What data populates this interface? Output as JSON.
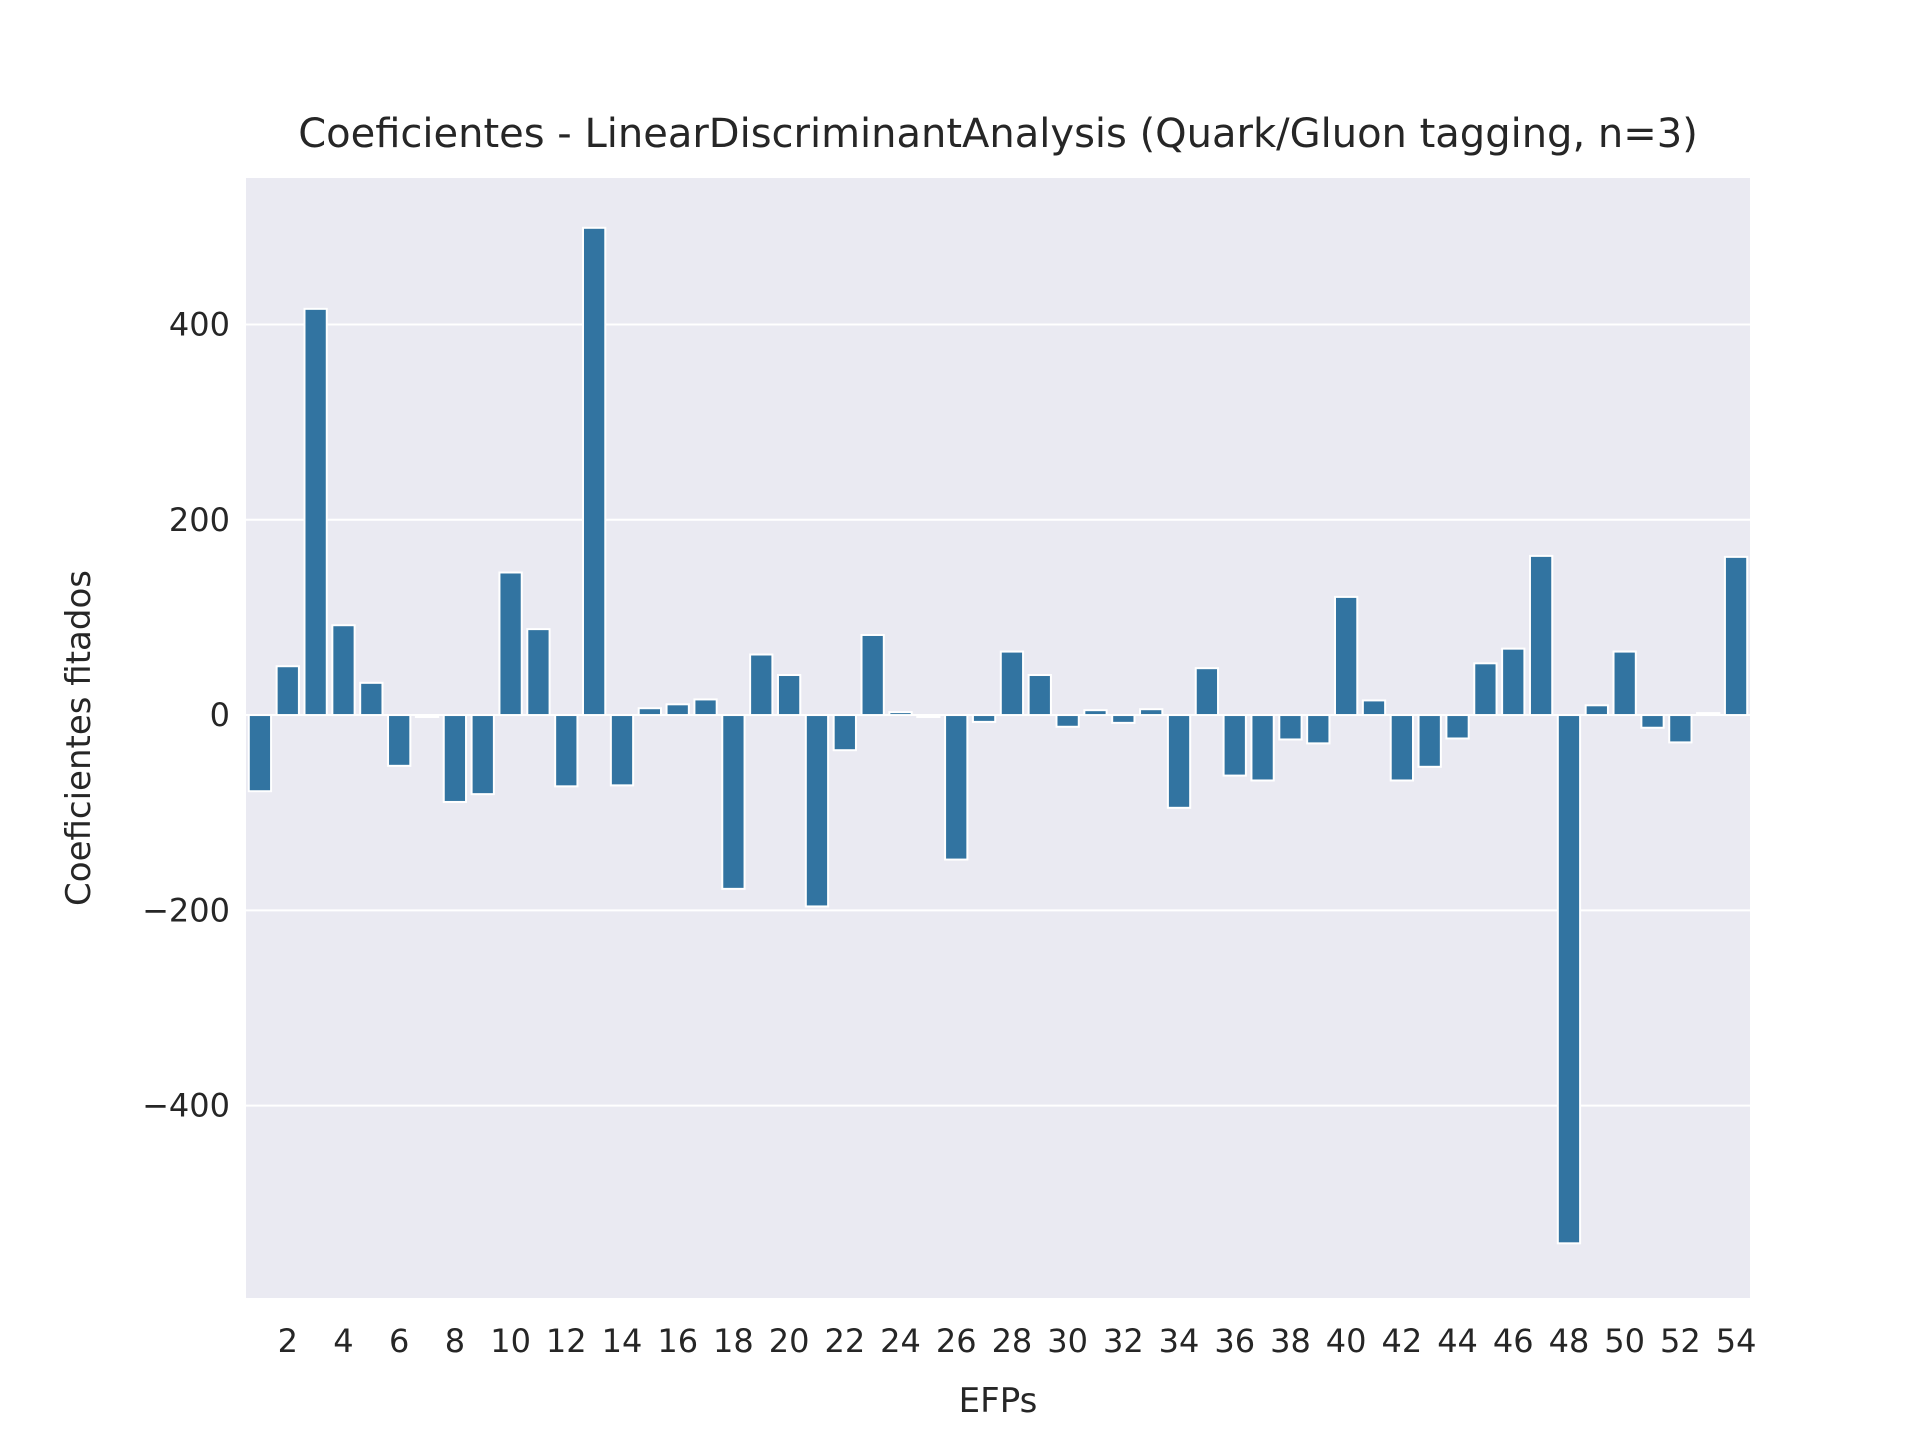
{
  "chart_data": {
    "type": "bar",
    "title": "Coeficientes - LinearDiscriminantAnalysis (Quark/Gluon tagging, n=3)",
    "xlabel": "EFPs",
    "ylabel": "Coeficientes fitados",
    "ylim": [
      -597,
      550
    ],
    "yticks": [
      -400,
      -200,
      0,
      200,
      400
    ],
    "ytick_labels": [
      "−400",
      "−200",
      "0",
      "200",
      "400"
    ],
    "xtick_labels": [
      "2",
      "4",
      "6",
      "8",
      "10",
      "12",
      "14",
      "16",
      "18",
      "20",
      "22",
      "24",
      "26",
      "28",
      "30",
      "32",
      "34",
      "36",
      "38",
      "40",
      "42",
      "44",
      "46",
      "48",
      "50",
      "52",
      "54"
    ],
    "grid": true,
    "bar_color": "#3274a1",
    "background_color": "#eaeaf2",
    "categories": [
      1,
      2,
      3,
      4,
      5,
      6,
      7,
      8,
      9,
      10,
      11,
      12,
      13,
      14,
      15,
      16,
      17,
      18,
      19,
      20,
      21,
      22,
      23,
      24,
      25,
      26,
      27,
      28,
      29,
      30,
      31,
      32,
      33,
      34,
      35,
      36,
      37,
      38,
      39,
      40,
      41,
      42,
      43,
      44,
      45,
      46,
      47,
      48,
      49,
      50,
      51,
      52,
      53,
      54
    ],
    "values": [
      -78,
      50,
      416,
      92,
      33,
      -52,
      -2,
      -89,
      -81,
      146,
      88,
      -73,
      499,
      -72,
      7,
      11,
      16,
      -178,
      62,
      41,
      -196,
      -36,
      82,
      3,
      -2,
      -148,
      -7,
      65,
      41,
      -12,
      5,
      -8,
      6,
      -95,
      48,
      -62,
      -67,
      -25,
      -29,
      121,
      15,
      -67,
      -53,
      -24,
      53,
      68,
      163,
      -541,
      10,
      65,
      -13,
      -28,
      2,
      162
    ]
  }
}
